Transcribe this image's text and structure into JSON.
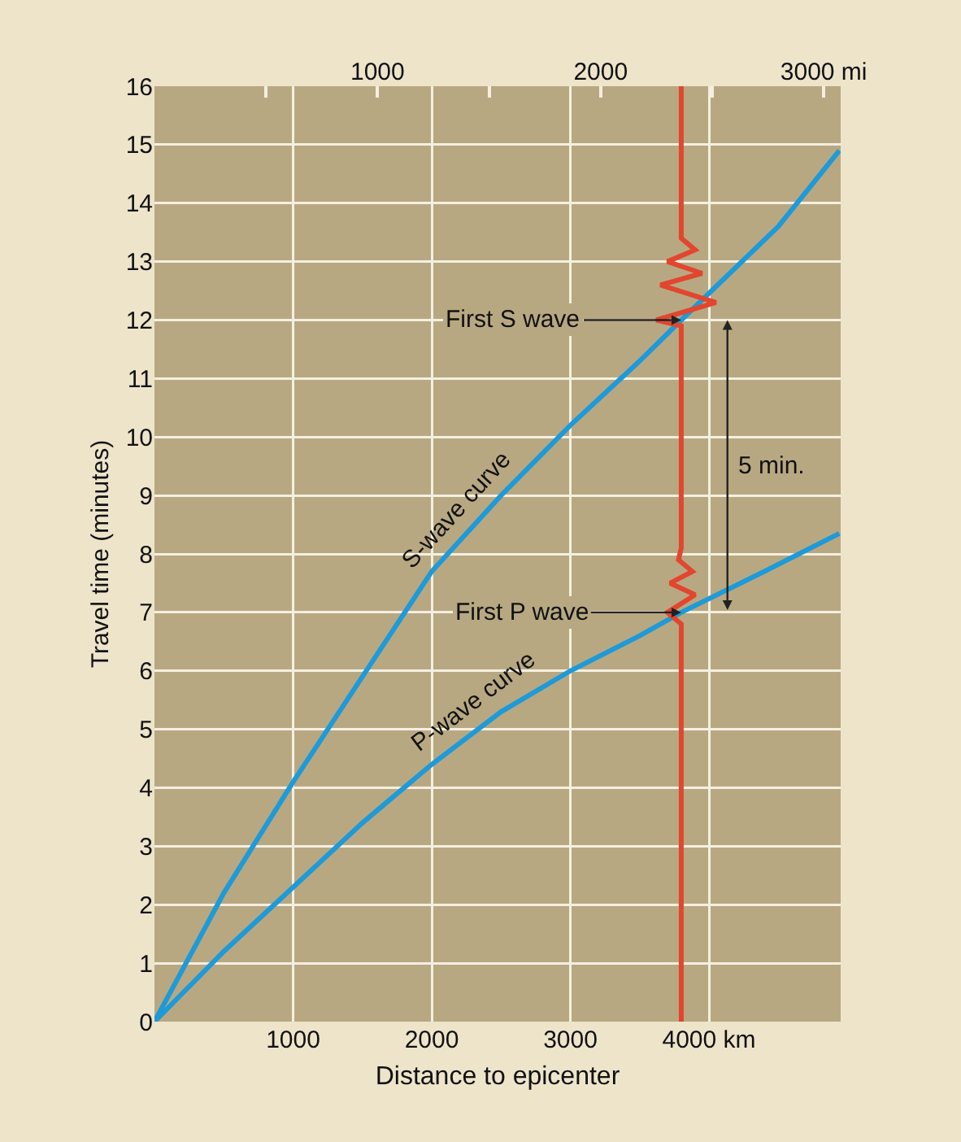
{
  "chart_data": {
    "type": "line",
    "xlabel": "Distance to epicenter",
    "ylabel": "Travel time (minutes)",
    "xlim": [
      0,
      4950
    ],
    "xticks": [
      1000,
      2000,
      3000,
      {
        "value": 4000,
        "label": "4000 km"
      }
    ],
    "x2lim": [
      0,
      3076
    ],
    "x2ticks": [
      {
        "value": 500,
        "label": null
      },
      1000,
      {
        "value": 1500,
        "label": null
      },
      2000,
      {
        "value": 2500,
        "label": null
      },
      {
        "value": 3000,
        "label": "3000 mi"
      }
    ],
    "ylim": [
      0,
      16
    ],
    "yticks": [
      0,
      1,
      2,
      3,
      4,
      5,
      6,
      7,
      8,
      9,
      10,
      11,
      12,
      13,
      14,
      15,
      16
    ],
    "grid": true,
    "line_style": "solid",
    "marker": "none",
    "series": [
      {
        "color": "#1e9ad8",
        "x": [
          0,
          500,
          1000,
          1500,
          2000,
          2500,
          3000,
          3500,
          3800,
          4500,
          4940
        ],
        "values": [
          0,
          2.2,
          4.1,
          5.9,
          7.7,
          9.0,
          10.2,
          11.3,
          12,
          13.6,
          14.9
        ]
      },
      {
        "color": "#1e9ad8",
        "x": [
          0,
          500,
          1000,
          1500,
          2000,
          2500,
          3000,
          3500,
          3800,
          4400,
          4940
        ],
        "values": [
          0,
          1.2,
          2.3,
          3.4,
          4.4,
          5.3,
          6.0,
          6.6,
          7.0,
          7.7,
          8.35
        ]
      },
      {
        "color": "#e2462e",
        "x": [
          3800,
          3800,
          3700,
          3900,
          3720,
          3880,
          3780,
          3800,
          3800,
          3620,
          4050,
          3650,
          3950,
          3700,
          3900,
          3800,
          3800
        ],
        "values": [
          0,
          6.8,
          7.0,
          7.3,
          7.5,
          7.7,
          7.9,
          8.1,
          11.9,
          12.0,
          12.3,
          12.6,
          12.8,
          13.0,
          13.2,
          13.4,
          16
        ]
      }
    ],
    "annotations": [
      {
        "text": "First S wave",
        "x": 3800,
        "y": 12
      },
      {
        "text": "First P wave",
        "x": 3800,
        "y": 7
      },
      "5 min.",
      {
        "text": "S-wave curve",
        "x": 2300,
        "y": 8.5
      },
      {
        "text": "P-wave curve",
        "x": 2400,
        "y": 5.15
      }
    ]
  }
}
